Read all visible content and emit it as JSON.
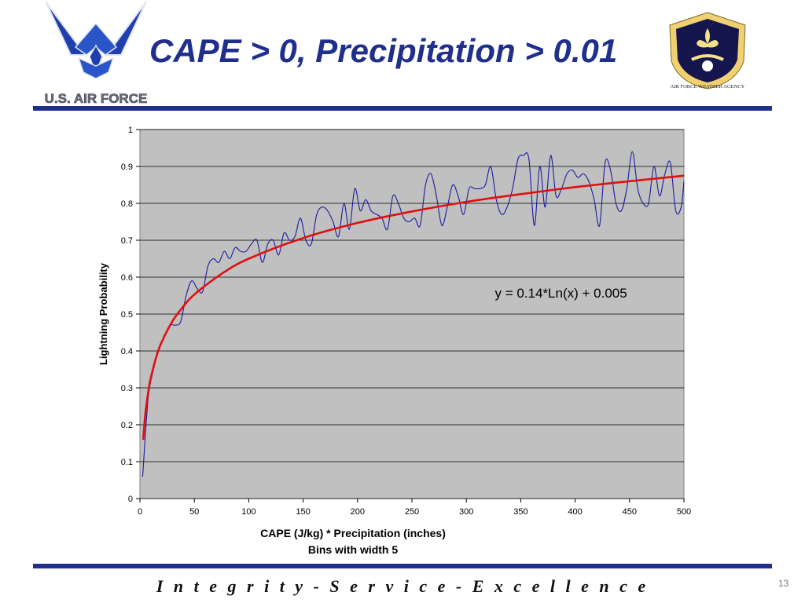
{
  "slide": {
    "title": "CAPE > 0, Precipitation > 0.01",
    "footer": "Integrity - Service - Excellence",
    "page_number": "13",
    "logo_left_text": "U.S. AIR FORCE",
    "logo_right_text": "AIR FORCE WEATHER AGENCY"
  },
  "colors": {
    "title": "#1f2f8c",
    "rule": "#1f2f8c",
    "plot_bg": "#c0c0c0",
    "observed_line": "#1a1aa0",
    "fit_line": "#e01010"
  },
  "chart_data": {
    "type": "line",
    "title": "",
    "xlabel": "CAPE (J/kg) * Precipitation (inches)",
    "xlabel2": "Bins with width 5",
    "ylabel": "Lightning Probability",
    "xlim": [
      0,
      500
    ],
    "ylim": [
      0,
      1
    ],
    "xticks": [
      "0",
      "50",
      "100",
      "150",
      "200",
      "250",
      "300",
      "350",
      "400",
      "450",
      "500"
    ],
    "yticks": [
      "0",
      "0.1",
      "0.2",
      "0.3",
      "0.4",
      "0.5",
      "0.6",
      "0.7",
      "0.8",
      "0.9",
      "1"
    ],
    "grid": true,
    "annotation": "y = 0.14*Ln(x) + 0.005",
    "series": [
      {
        "type": "observed",
        "x": [
          2.5,
          7.5,
          12.5,
          17.5,
          22.5,
          27.5,
          32.5,
          37.5,
          42.5,
          47.5,
          52.5,
          57.5,
          62.5,
          67.5,
          72.5,
          77.5,
          82.5,
          87.5,
          92.5,
          97.5,
          102.5,
          107.5,
          112.5,
          117.5,
          122.5,
          127.5,
          132.5,
          137.5,
          142.5,
          147.5,
          152.5,
          157.5,
          162.5,
          167.5,
          172.5,
          177.5,
          182.5,
          187.5,
          192.5,
          197.5,
          202.5,
          207.5,
          212.5,
          217.5,
          222.5,
          227.5,
          232.5,
          237.5,
          242.5,
          247.5,
          252.5,
          257.5,
          262.5,
          267.5,
          272.5,
          277.5,
          282.5,
          287.5,
          292.5,
          297.5,
          302.5,
          307.5,
          312.5,
          317.5,
          322.5,
          327.5,
          332.5,
          337.5,
          342.5,
          347.5,
          352.5,
          357.5,
          362.5,
          367.5,
          372.5,
          377.5,
          382.5,
          387.5,
          392.5,
          397.5,
          402.5,
          407.5,
          412.5,
          417.5,
          422.5,
          427.5,
          432.5,
          437.5,
          442.5,
          447.5,
          452.5,
          457.5,
          462.5,
          467.5,
          472.5,
          477.5,
          482.5,
          487.5,
          492.5,
          497.5,
          500
        ],
        "y": [
          0.06,
          0.27,
          0.35,
          0.41,
          0.44,
          0.47,
          0.47,
          0.48,
          0.55,
          0.59,
          0.57,
          0.56,
          0.63,
          0.65,
          0.64,
          0.67,
          0.65,
          0.68,
          0.67,
          0.67,
          0.69,
          0.7,
          0.64,
          0.69,
          0.7,
          0.66,
          0.72,
          0.7,
          0.71,
          0.76,
          0.7,
          0.69,
          0.77,
          0.79,
          0.78,
          0.75,
          0.71,
          0.8,
          0.73,
          0.84,
          0.78,
          0.81,
          0.78,
          0.77,
          0.76,
          0.73,
          0.82,
          0.8,
          0.76,
          0.75,
          0.76,
          0.74,
          0.85,
          0.88,
          0.82,
          0.74,
          0.79,
          0.85,
          0.82,
          0.77,
          0.84,
          0.84,
          0.84,
          0.85,
          0.9,
          0.81,
          0.77,
          0.79,
          0.84,
          0.92,
          0.93,
          0.92,
          0.74,
          0.9,
          0.79,
          0.93,
          0.82,
          0.84,
          0.88,
          0.89,
          0.87,
          0.88,
          0.86,
          0.81,
          0.74,
          0.91,
          0.89,
          0.8,
          0.78,
          0.84,
          0.94,
          0.84,
          0.8,
          0.8,
          0.9,
          0.82,
          0.88,
          0.91,
          0.78,
          0.79,
          0.86
        ]
      },
      {
        "type": "fit",
        "x": [
          3,
          5,
          8,
          10,
          15,
          20,
          30,
          40,
          50,
          75,
          100,
          150,
          200,
          250,
          300,
          350,
          400,
          450,
          500
        ],
        "y": [
          0.159,
          0.23,
          0.296,
          0.327,
          0.384,
          0.424,
          0.481,
          0.521,
          0.553,
          0.609,
          0.65,
          0.706,
          0.747,
          0.778,
          0.804,
          0.825,
          0.844,
          0.86,
          0.875
        ]
      }
    ]
  }
}
